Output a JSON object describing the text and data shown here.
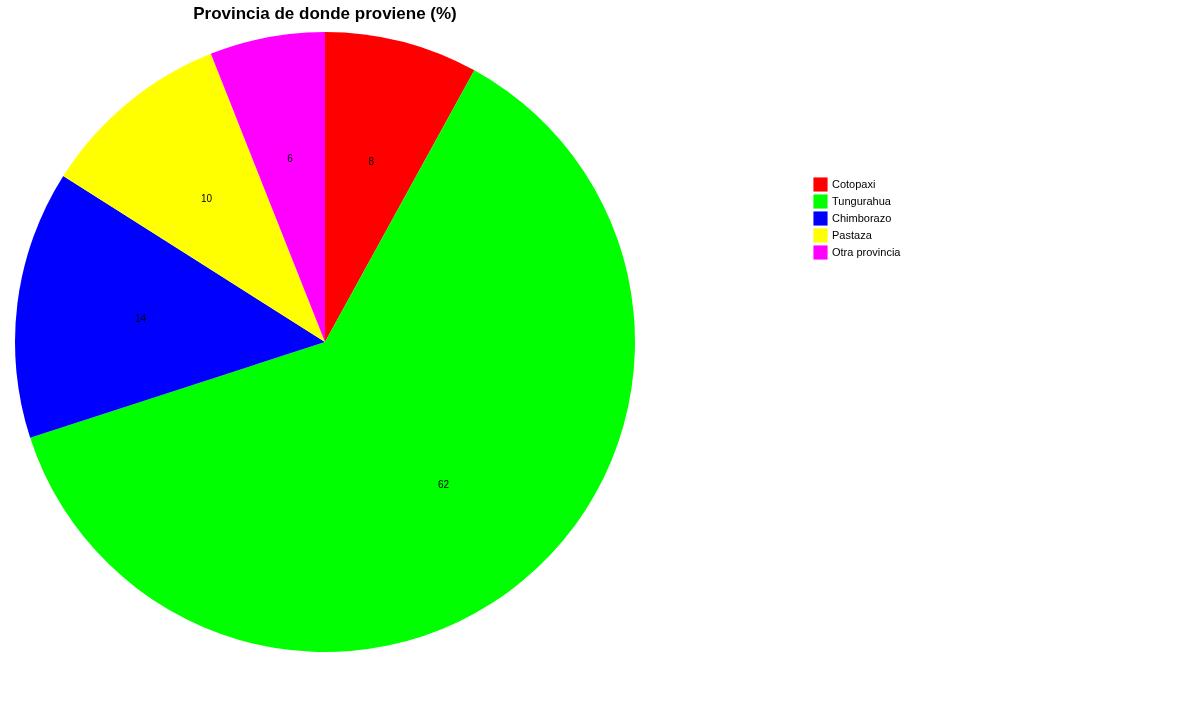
{
  "chart_data": {
    "type": "pie",
    "title": "Provincia de donde proviene (%)",
    "categories": [
      "Cotopaxi",
      "Tungurahua",
      "Chimborazo",
      "Pastaza",
      "Otra provincia"
    ],
    "values": [
      8,
      62,
      14,
      10,
      6
    ],
    "colors": [
      "#ff0000",
      "#00ff00",
      "#0000ff",
      "#ffff00",
      "#ff00ff"
    ],
    "data_labels": true,
    "legend": "right"
  }
}
